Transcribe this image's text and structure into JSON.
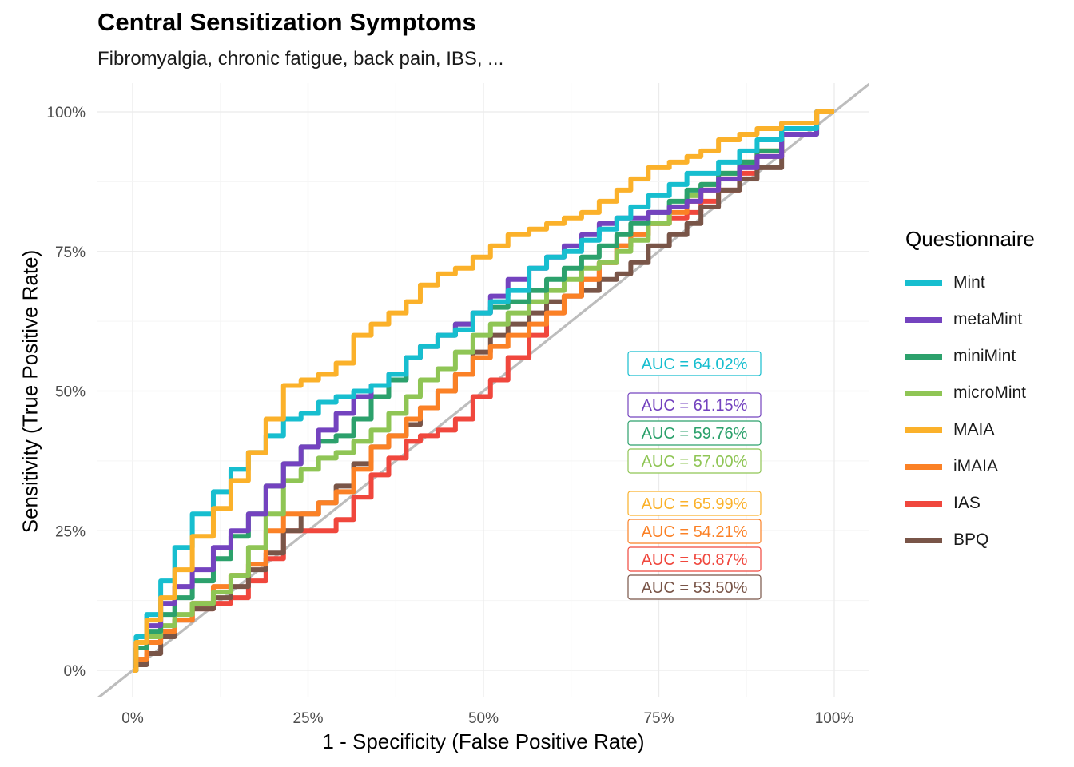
{
  "header": {
    "title": "Central Sensitization Symptoms",
    "subtitle": "Fibromyalgia, chronic fatigue, back pain, IBS, ..."
  },
  "legend": {
    "title": "Questionnaire",
    "placement": "right"
  },
  "chart_data": {
    "type": "line",
    "title": "Central Sensitization Symptoms",
    "subtitle": "Fibromyalgia, chronic fatigue, back pain, IBS, ...",
    "xlabel": "1 - Specificity (False Positive Rate)",
    "ylabel": "Sensitivity (True Positive Rate)",
    "xlim": [
      0,
      1
    ],
    "ylim": [
      0,
      1
    ],
    "xticks": [
      "0%",
      "25%",
      "50%",
      "75%",
      "100%"
    ],
    "yticks": [
      "0%",
      "25%",
      "50%",
      "75%",
      "100%"
    ],
    "grid": true,
    "reference_line": "diagonal",
    "series": [
      {
        "name": "Mint",
        "color": "#17BECF",
        "auc": "AUC = 64.02%",
        "x": [
          0,
          0.01,
          0.03,
          0.05,
          0.07,
          0.1,
          0.13,
          0.15,
          0.18,
          0.2,
          0.23,
          0.25,
          0.28,
          0.3,
          0.33,
          0.35,
          0.38,
          0.4,
          0.42,
          0.45,
          0.47,
          0.5,
          0.52,
          0.55,
          0.58,
          0.6,
          0.63,
          0.65,
          0.68,
          0.7,
          0.72,
          0.75,
          0.78,
          0.8,
          0.82,
          0.85,
          0.88,
          0.9,
          0.95,
          1.0
        ],
        "y": [
          0,
          0.06,
          0.1,
          0.16,
          0.22,
          0.28,
          0.32,
          0.36,
          0.39,
          0.42,
          0.45,
          0.46,
          0.48,
          0.49,
          0.5,
          0.51,
          0.53,
          0.56,
          0.58,
          0.6,
          0.61,
          0.64,
          0.66,
          0.68,
          0.72,
          0.74,
          0.75,
          0.77,
          0.79,
          0.81,
          0.83,
          0.85,
          0.87,
          0.89,
          0.89,
          0.91,
          0.93,
          0.95,
          0.97,
          1.0
        ]
      },
      {
        "name": "metaMint",
        "color": "#7443BF",
        "auc": "AUC = 61.15%",
        "x": [
          0,
          0.01,
          0.03,
          0.05,
          0.07,
          0.1,
          0.13,
          0.15,
          0.18,
          0.2,
          0.23,
          0.25,
          0.28,
          0.3,
          0.33,
          0.35,
          0.38,
          0.4,
          0.42,
          0.45,
          0.47,
          0.5,
          0.52,
          0.55,
          0.58,
          0.6,
          0.63,
          0.65,
          0.68,
          0.7,
          0.72,
          0.75,
          0.78,
          0.8,
          0.82,
          0.85,
          0.88,
          0.9,
          0.95,
          1.0
        ],
        "y": [
          0,
          0.05,
          0.08,
          0.12,
          0.15,
          0.18,
          0.22,
          0.25,
          0.28,
          0.33,
          0.37,
          0.4,
          0.43,
          0.46,
          0.49,
          0.51,
          0.53,
          0.56,
          0.58,
          0.6,
          0.62,
          0.64,
          0.67,
          0.7,
          0.72,
          0.74,
          0.76,
          0.78,
          0.8,
          0.81,
          0.81,
          0.82,
          0.83,
          0.84,
          0.86,
          0.88,
          0.9,
          0.92,
          0.96,
          1.0
        ]
      },
      {
        "name": "miniMint",
        "color": "#2CA16C",
        "auc": "AUC = 59.76%",
        "x": [
          0,
          0.01,
          0.03,
          0.05,
          0.07,
          0.1,
          0.13,
          0.15,
          0.18,
          0.2,
          0.23,
          0.25,
          0.28,
          0.3,
          0.33,
          0.35,
          0.38,
          0.4,
          0.42,
          0.45,
          0.47,
          0.5,
          0.52,
          0.55,
          0.58,
          0.6,
          0.63,
          0.65,
          0.68,
          0.7,
          0.72,
          0.75,
          0.78,
          0.8,
          0.82,
          0.85,
          0.88,
          0.9,
          0.95,
          1.0
        ],
        "y": [
          0,
          0.04,
          0.07,
          0.1,
          0.13,
          0.16,
          0.2,
          0.24,
          0.28,
          0.33,
          0.37,
          0.4,
          0.41,
          0.42,
          0.45,
          0.49,
          0.52,
          0.56,
          0.58,
          0.6,
          0.62,
          0.64,
          0.65,
          0.66,
          0.68,
          0.7,
          0.72,
          0.74,
          0.76,
          0.78,
          0.8,
          0.82,
          0.84,
          0.86,
          0.87,
          0.89,
          0.91,
          0.93,
          0.96,
          1.0
        ]
      },
      {
        "name": "microMint",
        "color": "#8FC555",
        "auc": "AUC = 57.00%",
        "x": [
          0,
          0.01,
          0.03,
          0.05,
          0.07,
          0.1,
          0.13,
          0.15,
          0.18,
          0.2,
          0.23,
          0.25,
          0.28,
          0.3,
          0.33,
          0.35,
          0.38,
          0.4,
          0.42,
          0.45,
          0.47,
          0.5,
          0.52,
          0.55,
          0.58,
          0.6,
          0.63,
          0.65,
          0.68,
          0.7,
          0.72,
          0.75,
          0.78,
          0.8,
          0.82,
          0.85,
          0.88,
          0.9,
          0.95,
          1.0
        ],
        "y": [
          0,
          0.04,
          0.06,
          0.08,
          0.1,
          0.12,
          0.14,
          0.17,
          0.22,
          0.28,
          0.34,
          0.36,
          0.38,
          0.39,
          0.41,
          0.43,
          0.46,
          0.49,
          0.52,
          0.54,
          0.57,
          0.6,
          0.62,
          0.64,
          0.66,
          0.68,
          0.7,
          0.72,
          0.73,
          0.75,
          0.77,
          0.8,
          0.83,
          0.85,
          0.87,
          0.89,
          0.91,
          0.93,
          0.96,
          1.0
        ]
      },
      {
        "name": "MAIA",
        "color": "#FBB12A",
        "auc": "AUC = 65.99%",
        "x": [
          0,
          0.01,
          0.03,
          0.05,
          0.07,
          0.1,
          0.13,
          0.15,
          0.18,
          0.2,
          0.23,
          0.25,
          0.28,
          0.3,
          0.33,
          0.35,
          0.38,
          0.4,
          0.42,
          0.45,
          0.47,
          0.5,
          0.52,
          0.55,
          0.58,
          0.6,
          0.63,
          0.65,
          0.68,
          0.7,
          0.72,
          0.75,
          0.78,
          0.8,
          0.82,
          0.85,
          0.88,
          0.9,
          0.95,
          1.0
        ],
        "y": [
          0,
          0.05,
          0.09,
          0.13,
          0.18,
          0.24,
          0.29,
          0.34,
          0.39,
          0.45,
          0.51,
          0.52,
          0.53,
          0.55,
          0.6,
          0.62,
          0.64,
          0.66,
          0.69,
          0.71,
          0.72,
          0.74,
          0.76,
          0.78,
          0.79,
          0.8,
          0.81,
          0.82,
          0.84,
          0.86,
          0.88,
          0.9,
          0.91,
          0.92,
          0.93,
          0.95,
          0.96,
          0.97,
          0.98,
          1.0
        ]
      },
      {
        "name": "iMAIA",
        "color": "#FB8126",
        "auc": "AUC = 54.21%",
        "x": [
          0,
          0.01,
          0.03,
          0.05,
          0.07,
          0.1,
          0.13,
          0.15,
          0.18,
          0.2,
          0.23,
          0.25,
          0.28,
          0.3,
          0.33,
          0.35,
          0.38,
          0.4,
          0.42,
          0.45,
          0.47,
          0.5,
          0.52,
          0.55,
          0.58,
          0.6,
          0.63,
          0.65,
          0.68,
          0.7,
          0.72,
          0.75,
          0.78,
          0.8,
          0.82,
          0.85,
          0.88,
          0.9,
          0.95,
          1.0
        ],
        "y": [
          0,
          0.02,
          0.05,
          0.07,
          0.09,
          0.12,
          0.15,
          0.17,
          0.19,
          0.25,
          0.28,
          0.28,
          0.3,
          0.32,
          0.36,
          0.4,
          0.42,
          0.45,
          0.47,
          0.5,
          0.53,
          0.56,
          0.58,
          0.6,
          0.62,
          0.64,
          0.67,
          0.7,
          0.73,
          0.76,
          0.78,
          0.8,
          0.82,
          0.84,
          0.86,
          0.88,
          0.91,
          0.93,
          0.97,
          1.0
        ]
      },
      {
        "name": "IAS",
        "color": "#F0473D",
        "auc": "AUC = 50.87%",
        "x": [
          0,
          0.01,
          0.03,
          0.05,
          0.07,
          0.1,
          0.13,
          0.15,
          0.18,
          0.2,
          0.23,
          0.25,
          0.28,
          0.3,
          0.33,
          0.35,
          0.38,
          0.4,
          0.42,
          0.45,
          0.47,
          0.5,
          0.52,
          0.55,
          0.58,
          0.6,
          0.63,
          0.65,
          0.68,
          0.7,
          0.72,
          0.75,
          0.78,
          0.8,
          0.82,
          0.85,
          0.88,
          0.9,
          0.95,
          1.0
        ],
        "y": [
          0,
          0.05,
          0.06,
          0.07,
          0.09,
          0.11,
          0.12,
          0.13,
          0.16,
          0.2,
          0.25,
          0.25,
          0.25,
          0.27,
          0.31,
          0.35,
          0.38,
          0.41,
          0.42,
          0.43,
          0.45,
          0.49,
          0.52,
          0.56,
          0.6,
          0.64,
          0.67,
          0.7,
          0.73,
          0.76,
          0.78,
          0.8,
          0.81,
          0.82,
          0.84,
          0.86,
          0.89,
          0.92,
          0.97,
          1.0
        ]
      },
      {
        "name": "BPQ",
        "color": "#795548",
        "auc": "AUC = 53.50%",
        "x": [
          0,
          0.01,
          0.03,
          0.05,
          0.07,
          0.1,
          0.13,
          0.15,
          0.18,
          0.2,
          0.23,
          0.25,
          0.28,
          0.3,
          0.33,
          0.35,
          0.38,
          0.4,
          0.42,
          0.45,
          0.47,
          0.5,
          0.52,
          0.55,
          0.58,
          0.6,
          0.63,
          0.65,
          0.68,
          0.7,
          0.72,
          0.75,
          0.78,
          0.8,
          0.82,
          0.85,
          0.88,
          0.9,
          0.95,
          1.0
        ],
        "y": [
          0,
          0.01,
          0.03,
          0.06,
          0.09,
          0.11,
          0.13,
          0.15,
          0.18,
          0.21,
          0.25,
          0.28,
          0.3,
          0.33,
          0.37,
          0.4,
          0.42,
          0.44,
          0.47,
          0.5,
          0.53,
          0.57,
          0.6,
          0.62,
          0.64,
          0.66,
          0.67,
          0.68,
          0.7,
          0.71,
          0.73,
          0.76,
          0.78,
          0.8,
          0.83,
          0.86,
          0.88,
          0.9,
          0.98,
          1.0
        ]
      }
    ]
  }
}
